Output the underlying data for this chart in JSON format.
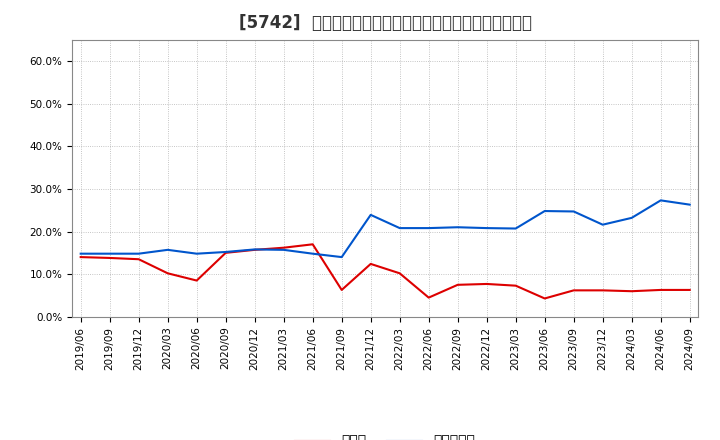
{
  "title": "[5742]  現頲金、有利子負債の総資産に対する比率の推移",
  "x_labels": [
    "2019/06",
    "2019/09",
    "2019/12",
    "2020/03",
    "2020/06",
    "2020/09",
    "2020/12",
    "2021/03",
    "2021/06",
    "2021/09",
    "2021/12",
    "2022/03",
    "2022/06",
    "2022/09",
    "2022/12",
    "2023/03",
    "2023/06",
    "2023/09",
    "2023/12",
    "2024/03",
    "2024/06",
    "2024/09"
  ],
  "cash_values": [
    0.14,
    0.138,
    0.135,
    0.102,
    0.085,
    0.15,
    0.157,
    0.162,
    0.17,
    0.063,
    0.124,
    0.102,
    0.045,
    0.075,
    0.077,
    0.073,
    0.043,
    0.062,
    0.062,
    0.06,
    0.063,
    0.063
  ],
  "debt_values": [
    0.148,
    0.148,
    0.148,
    0.157,
    0.148,
    0.152,
    0.158,
    0.157,
    0.148,
    0.14,
    0.239,
    0.208,
    0.208,
    0.21,
    0.208,
    0.207,
    0.248,
    0.247,
    0.216,
    0.232,
    0.273,
    0.263
  ],
  "cash_color": "#dd0000",
  "debt_color": "#0055cc",
  "bg_color": "#ffffff",
  "grid_color": "#aaaaaa",
  "legend_cash": "現頲金",
  "legend_debt": "有利子負債",
  "ylim": [
    0.0,
    0.65
  ],
  "yticks": [
    0.0,
    0.1,
    0.2,
    0.3,
    0.4,
    0.5,
    0.6
  ],
  "ytick_labels": [
    "0.0%",
    "10.0%",
    "20.0%",
    "30.0%",
    "40.0%",
    "50.0%",
    "60.0%"
  ],
  "title_fontsize": 12,
  "tick_fontsize": 7.5,
  "legend_fontsize": 10,
  "line_width": 1.5
}
